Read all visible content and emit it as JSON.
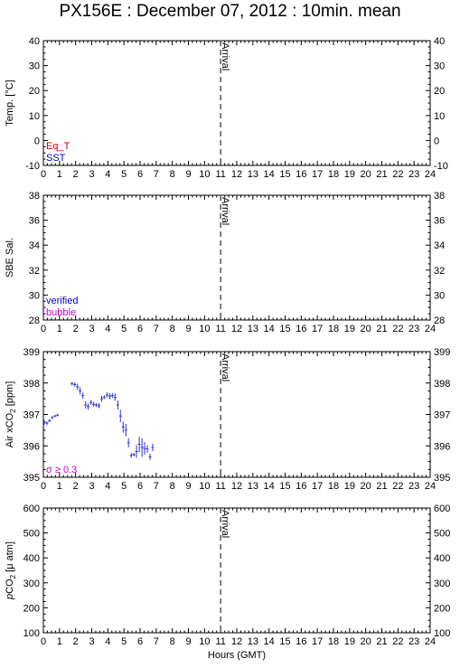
{
  "title": "PX156E : December 07, 2012 : 10min. mean",
  "colors": {
    "axis": "#000000",
    "eq_t": "#cc0000",
    "sst": "#0000cc",
    "verified": "#0000cc",
    "bubble": "#cc00cc",
    "data": "#3333cc",
    "sigma": "#cc00cc",
    "arrival_line": "#555555"
  },
  "chart_data": [
    {
      "type": "line",
      "name": "temperature-panel",
      "ylabel": "Temp. [°C]",
      "xlim": [
        0,
        24
      ],
      "ylim": [
        -10,
        40
      ],
      "yticks": [
        -10,
        0,
        10,
        20,
        30,
        40
      ],
      "legend": [
        {
          "label": "Eq_T",
          "color": "#cc0000"
        },
        {
          "label": "SST",
          "color": "#0000cc"
        }
      ],
      "legend_placement": "bottom-left",
      "marker": {
        "x": 11,
        "label": "Arrival"
      },
      "series": []
    },
    {
      "type": "line",
      "name": "salinity-panel",
      "ylabel": "SBE Sal.",
      "xlim": [
        0,
        24
      ],
      "ylim": [
        28,
        38
      ],
      "yticks": [
        28,
        30,
        32,
        34,
        36,
        38
      ],
      "legend": [
        {
          "label": "verified",
          "color": "#0000cc"
        },
        {
          "label": "bubble",
          "color": "#cc00cc"
        }
      ],
      "legend_placement": "bottom-left",
      "marker": {
        "x": 11,
        "label": "Arrival"
      },
      "series": []
    },
    {
      "type": "scatter",
      "name": "air-xco2-panel",
      "ylabel": "Air xCO",
      "ylabel_sub": "2",
      "ylabel_unit": " [ppm]",
      "xlim": [
        0,
        24
      ],
      "ylim": [
        395,
        399
      ],
      "yticks": [
        395,
        396,
        397,
        398,
        399
      ],
      "legend": [
        {
          "label": "σ ≥ 0.3",
          "color": "#cc00cc"
        }
      ],
      "legend_placement": "bottom-left",
      "marker": {
        "x": 11,
        "label": "Arrival"
      },
      "series": [
        {
          "x": [
            0.05,
            0.22,
            0.38,
            0.55,
            0.72,
            0.88,
            1.78,
            1.95,
            2.12,
            2.28,
            2.45,
            2.62,
            2.78,
            2.95,
            3.12,
            3.28,
            3.45,
            3.62,
            3.78,
            3.95,
            4.12,
            4.28,
            4.45,
            4.62,
            4.78,
            4.95,
            5.12,
            5.28,
            5.45,
            5.62,
            5.78,
            5.95,
            6.12,
            6.28,
            6.45,
            6.62,
            6.78
          ],
          "y": [
            396.75,
            396.72,
            396.8,
            396.9,
            396.95,
            396.98,
            397.98,
            397.95,
            397.88,
            397.75,
            397.6,
            397.3,
            397.25,
            397.38,
            397.32,
            397.3,
            397.28,
            397.5,
            397.55,
            397.62,
            397.58,
            397.6,
            397.55,
            397.3,
            396.95,
            396.6,
            396.5,
            396.1,
            395.7,
            395.72,
            395.82,
            396.05,
            395.95,
            395.92,
            395.9,
            395.65,
            395.95
          ],
          "err": [
            0.08,
            0.06,
            0.05,
            0.05,
            0.04,
            0.04,
            0.06,
            0.07,
            0.1,
            0.12,
            0.1,
            0.12,
            0.1,
            0.08,
            0.08,
            0.06,
            0.08,
            0.1,
            0.06,
            0.08,
            0.1,
            0.08,
            0.12,
            0.15,
            0.2,
            0.18,
            0.2,
            0.15,
            0.08,
            0.06,
            0.2,
            0.25,
            0.3,
            0.2,
            0.12,
            0.1,
            0.12
          ]
        }
      ]
    },
    {
      "type": "line",
      "name": "pco2-panel",
      "ylabel_pre": "p",
      "ylabel": "CO",
      "ylabel_sub": "2",
      "ylabel_unit": " [μ atm]",
      "xlim": [
        0,
        24
      ],
      "ylim": [
        100,
        600
      ],
      "yticks": [
        100,
        200,
        300,
        400,
        500,
        600
      ],
      "xlabel": "Hours (GMT)",
      "marker": {
        "x": 11,
        "label": "Arrival"
      },
      "series": []
    }
  ],
  "xticks": [
    0,
    1,
    2,
    3,
    4,
    5,
    6,
    7,
    8,
    9,
    10,
    11,
    12,
    13,
    14,
    15,
    16,
    17,
    18,
    19,
    20,
    21,
    22,
    23,
    24
  ]
}
